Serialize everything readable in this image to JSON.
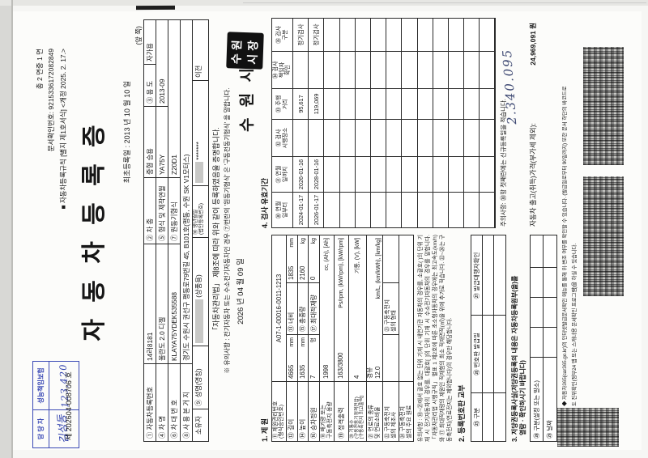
{
  "header": {
    "page_info": "총   2   면중   1   면",
    "doc_confirm": "문서확인번호:  9215336172082849",
    "rule_line": "■ 자동차등록규칙 [별지 제1호서식] <개정 2025. 2. 17.>",
    "doc_number": "제   202604-008706   호",
    "front_marker": "(앞 쪽)",
    "title": "자 동 차 등 록 증",
    "first_registration": "최초등록일 :    2013 년  10 월  10 일"
  },
  "vehicle": {
    "reg_no_label": "① 자동차등록번호",
    "reg_no": "14러8181",
    "type_label": "② 차    종",
    "type_value": "중형 승용",
    "use_label": "③ 용 도",
    "use_value": "자가용",
    "name_label": "④ 차    명",
    "name_value": "올란도 2.0 디젤",
    "model_label": "⑤ 형식 및 제작연월",
    "model_value": "YA75Y",
    "made_date": "2013-09",
    "vin_label": "⑥ 차 대 번 호",
    "vin_value": "KLAYA75YDEK535588",
    "engine_label": "⑦ 원동기형식",
    "engine_value": "Z20D1",
    "address_label": "⑧ 사 용 본 거 지",
    "address_value": "경기도 수원시 권선구 평동로79번길 45, B101호(평동, 수원 SK V1모터스)",
    "owner_label": "소유자",
    "owner_name_label": "⑨ 성명(명칭)",
    "owner_name_note": "(상품용)",
    "birth_label_1": "⑩ 생년월일",
    "birth_label_2": "(법인등록번호)",
    "birth_masked_stars": "*******",
    "transfer_note": "이전"
  },
  "certify": {
    "statement": "「자동차관리법」 제8조에 따라 위와 같이 등록하였음을 증명합니다.",
    "note": "※ 유의사항 : 전기자동차 또는 수소전기자동차인 경우 ⑦번란의 '원동기형식' 은 '구동전동기형식' 을 말합니다.",
    "issue_date": "2026 년  04 월  09 일",
    "authority": "수 원 시",
    "stamp_line1": "수원",
    "stamp_line2": "시장"
  },
  "spec": {
    "title": "1. 제 원",
    "mgmt_label_1": "⑪ 제원관리번호",
    "mgmt_label_2": "(형식승인번호)",
    "mgmt_value": "A07-1-00016-0011-1213",
    "len_label": "⑫ 길이",
    "len_value": "4665",
    "len_unit": "mm",
    "width_label": "⑬ 너비",
    "width_value": "1835",
    "width_unit": "mm",
    "height_label": "⑭ 높이",
    "height_value": "1635",
    "height_unit": "mm",
    "weight_label": "⑮ 총중량",
    "weight_value": "2160",
    "weight_unit": "kg",
    "seat_label": "⑯ 승차정원",
    "seat_value": "7",
    "seat_unit": "명",
    "payload_label": "⑰ 최대적재량",
    "payload_value": "0",
    "payload_unit": "kg",
    "disp_label_1": "⑱ 배기량 또는",
    "disp_label_2": "구동축전지 용량",
    "disp_value": "1998",
    "disp_unit": "cc, (Ah), [Ah]",
    "power_label": "⑲ 정격출력",
    "power_value": "163/3800",
    "power_unit": "Ps/rpm, (kW/rpm), [kW/rpm]",
    "cyl_label_1": "⑳ 기통수",
    "cyl_label_2": "(구동전동기정격전압)",
    "cyl_label_3": "[구동축전지 최고출력]",
    "cyl_value": "4",
    "cyl_unit": "기통, (V), [kW]",
    "fuel_label_1": "㉑ 연료의 종류",
    "fuel_label_2": "및 연료소비율",
    "fuel_value": "경유",
    "fuel_econ": "12.0",
    "fuel_unit": "km/L, (km/kWh), [km/kg]",
    "cell_maker_label_1": "㉒ 구동축전지",
    "cell_maker_label_2": "셀의 제조사",
    "cell_form_label_1": "㉓ 구동축전지",
    "cell_form_label_2": "셀의 형태",
    "cell_material_label_1": "㉔ 구동축전지",
    "cell_material_label_2": "셀의 주요 원료",
    "notice": "유의사항 : ⑱~㉑에서 괄호 없는 단위 기재 시 내연기관 자동차의 경우를, 소괄호( )의 단위 기재 시 전기자동차의 경우를, 대괄호[ ]의 단위 기재 시 수소전기자동차의 경우를 말합니다. 「자동차관리법 시행규칙」 별표 1 제2호에 따른 초소형자동차의 경우에는 최고속도(km/h)와 ⑰ 최대적재량의 제원인 적재함의 최소 적재면적(㎡)을 위에 추가로 적습니다. ㉒~㉔는 구동축전지(연료전지는 제외합니다)의 경우만 해당합니다."
  },
  "plate": {
    "title": "2. 등록번호판 교부",
    "col1": "㉕ 구분",
    "col2": "㉖ 번호판 발급일",
    "col3": "㉗ 발급대행자확인"
  },
  "mortgage": {
    "title_1": "3. 저당권등록사실(저당권등록의 내용은 자동차등록원부(을)를",
    "title_2": "열람 · 확인하시기 바랍니다)",
    "row1_label": "㉘ 구분(설정 또는 말소)",
    "row2_label": "㉙ 날짜"
  },
  "inspection": {
    "title": "4. 검사 유효기간",
    "headers": [
      [
        "㉚ 연월",
        "일부터"
      ],
      [
        "㉛ 연월",
        "일까지"
      ],
      [
        "㉜ 검사",
        "시행장소"
      ],
      [
        "㉝ 주행",
        "거리"
      ],
      [
        "㉞ 검사",
        "책임자",
        "확인"
      ],
      [
        "㉟ 검사",
        "구분"
      ]
    ],
    "rows": [
      [
        "2024-01-17",
        "2026-01-16",
        "",
        "95,617",
        "",
        "정기검사"
      ],
      [
        "2026-01-17",
        "2028-01-16",
        "",
        "119,069",
        "",
        "정기검사"
      ]
    ],
    "empty_row_count": 11,
    "caution": "주의사항: ㉚항 첫째란에는 신규등록일을 적습니다.",
    "handwritten_price": "2.340.095",
    "price_label": "자동차 출고(취득)가격(부가세 제외):",
    "price_value": "24,969,091 원"
  },
  "footer": {
    "line1": "◆ 자동차365(car365.go.kr)의 인터넷발급문서확인 메뉴를 통해 위·변조 여부를 확인할 수 있습니다. (발급일로부터 90일까지) 또한 문서 하단의 바코드로",
    "line2": "도 진위확인(정부24 앱 또는 스캐너용 문서확인 프로그램)을 하실 수 있습니다."
  },
  "stamp_box": {
    "col1_header": "담 당 자",
    "col1_value": "김성동",
    "col2_header": "성능책임보험",
    "col2_value": "123,420"
  }
}
